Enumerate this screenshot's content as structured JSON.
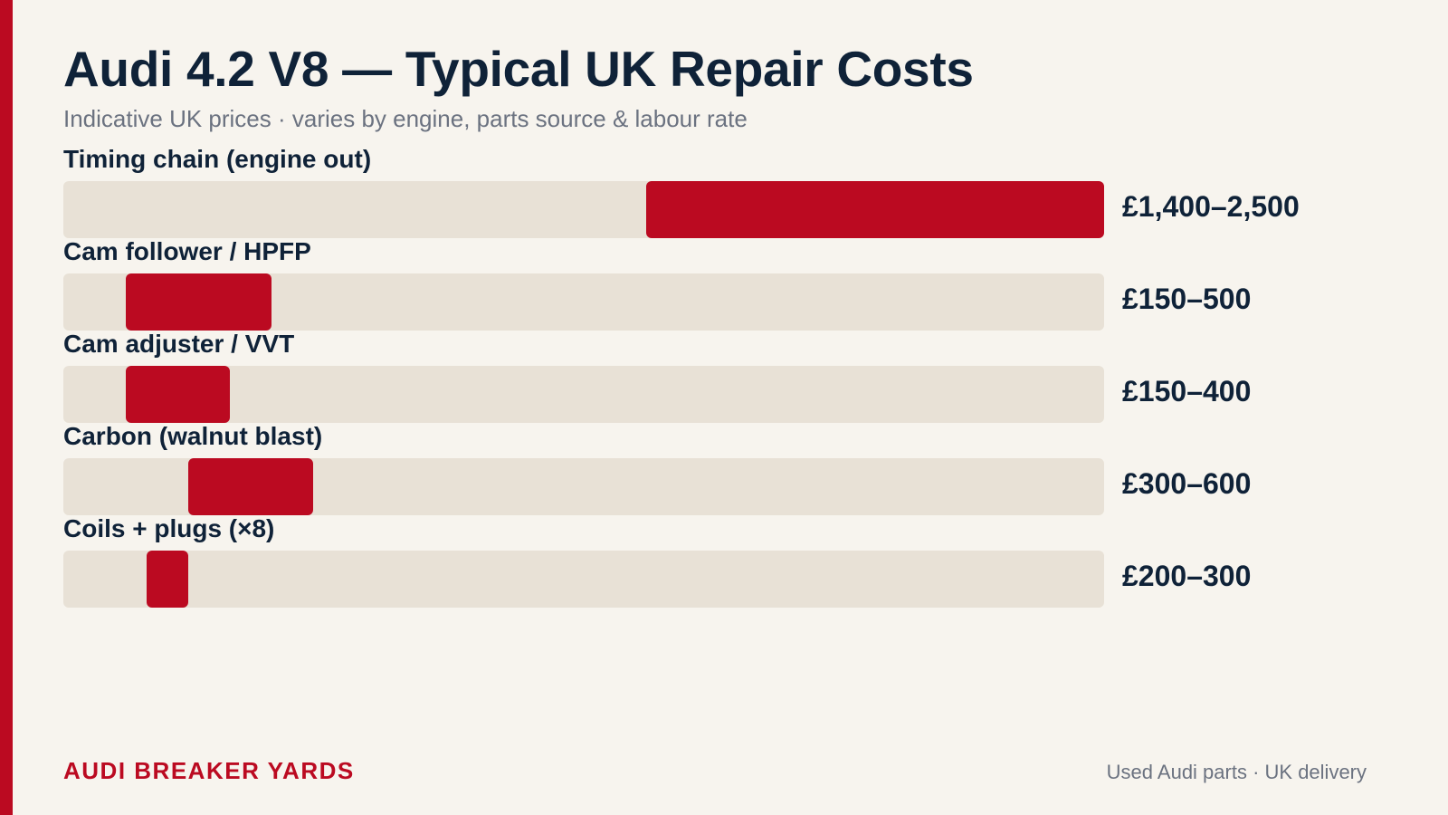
{
  "header": {
    "title": "Audi 4.2 V8 — Typical UK Repair Costs",
    "subtitle": "Indicative UK prices · varies by engine, parts source & labour rate"
  },
  "colors": {
    "accent": "#bb0a21",
    "track": "#e8e1d6",
    "background": "#f7f4ee",
    "text": "#0f2238"
  },
  "chart_data": {
    "type": "bar",
    "orientation": "horizontal",
    "title": "Audi 4.2 V8 — Typical UK Repair Costs",
    "xlim": [
      0,
      2500
    ],
    "grid": false,
    "categories": [
      "Timing chain (engine out)",
      "Cam follower / HPFP",
      "Cam adjuster / VVT",
      "Carbon (walnut blast)",
      "Coils + plugs (×8)"
    ],
    "ranges": [
      {
        "low": 1400,
        "high": 2500,
        "label": "£1,400–2,500"
      },
      {
        "low": 150,
        "high": 500,
        "label": "£150–500"
      },
      {
        "low": 150,
        "high": 400,
        "label": "£150–400"
      },
      {
        "low": 300,
        "high": 600,
        "label": "£300–600"
      },
      {
        "low": 200,
        "high": 300,
        "label": "£200–300"
      }
    ]
  },
  "footer": {
    "brand": "AUDI BREAKER YARDS",
    "note": "Used Audi parts · UK delivery"
  }
}
